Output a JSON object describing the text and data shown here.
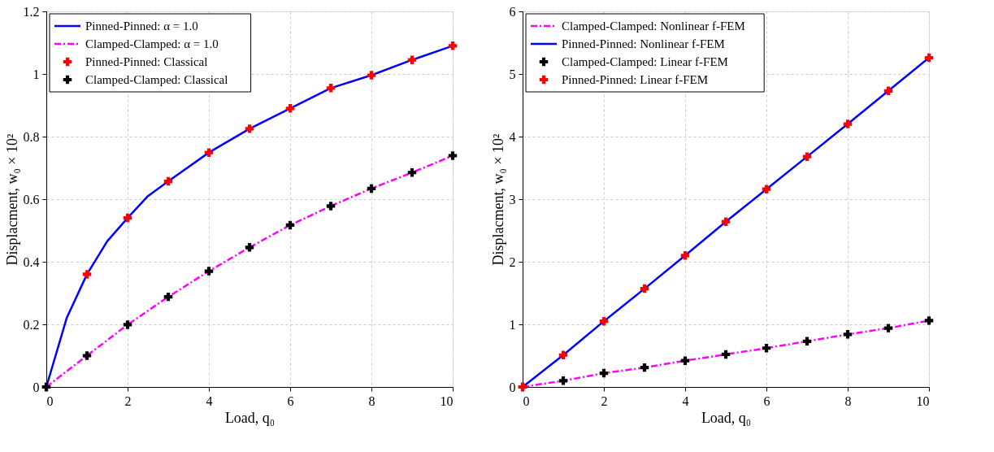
{
  "chart_data": [
    {
      "type": "line",
      "xlabel": "Load, q₀",
      "ylabel": "Displacment, w₀ × 10²",
      "xlim": [
        0,
        10
      ],
      "xticks": [
        0,
        2,
        4,
        6,
        8,
        10
      ],
      "ylim": [
        0,
        1.2
      ],
      "yticks": [
        0,
        0.2,
        0.4,
        0.6,
        0.8,
        1,
        1.2
      ],
      "grid": true,
      "legend": "top left",
      "series": [
        {
          "name": "Pinned-Pinned: α = 1.0",
          "line_style": "solid",
          "color": "#0000ff",
          "x": [
            0,
            0.5,
            1,
            1.5,
            2,
            2.5,
            3,
            4,
            5,
            6,
            7,
            8,
            9,
            10
          ],
          "values": [
            0,
            0.22,
            0.36,
            0.466,
            0.54,
            0.61,
            0.657,
            0.749,
            0.825,
            0.89,
            0.955,
            0.996,
            1.045,
            1.09
          ]
        },
        {
          "name": "Clamped-Clamped: α = 1.0",
          "line_style": "dashed",
          "color": "#ff00ff",
          "x": [
            0,
            1,
            2,
            3,
            4,
            5,
            6,
            7,
            8,
            9,
            10
          ],
          "values": [
            0,
            0.1,
            0.199,
            0.288,
            0.37,
            0.446,
            0.517,
            0.578,
            0.634,
            0.685,
            0.739
          ]
        },
        {
          "name": "Pinned-Pinned: Classical",
          "type": "scatter",
          "marker": "cross",
          "color": "#ff0000",
          "x": [
            0,
            1,
            2,
            3,
            4,
            5,
            6,
            7,
            8,
            9,
            10
          ],
          "values": [
            0,
            0.36,
            0.54,
            0.657,
            0.749,
            0.825,
            0.89,
            0.955,
            0.996,
            1.045,
            1.09
          ]
        },
        {
          "name": "Clamped-Clamped: Classical",
          "type": "scatter",
          "marker": "cross",
          "color": "#000000",
          "x": [
            0,
            1,
            2,
            3,
            4,
            5,
            6,
            7,
            8,
            9,
            10
          ],
          "values": [
            0,
            0.1,
            0.199,
            0.288,
            0.37,
            0.446,
            0.517,
            0.578,
            0.634,
            0.685,
            0.739
          ]
        }
      ]
    },
    {
      "type": "line",
      "xlabel": "Load, q₀",
      "ylabel": "Displacment, w₀ × 10²",
      "xlim": [
        0,
        10
      ],
      "xticks": [
        0,
        2,
        4,
        6,
        8,
        10
      ],
      "ylim": [
        0,
        6
      ],
      "yticks": [
        0,
        1,
        2,
        3,
        4,
        5,
        6
      ],
      "grid": true,
      "legend": "top left",
      "series": [
        {
          "name": "Clamped-Clamped: Nonlinear f-FEM",
          "line_style": "dashed",
          "color": "#ff00ff",
          "x": [
            0,
            1,
            2,
            3,
            4,
            5,
            6,
            7,
            8,
            9,
            10
          ],
          "values": [
            0,
            0.1,
            0.22,
            0.31,
            0.42,
            0.52,
            0.62,
            0.73,
            0.84,
            0.94,
            1.06
          ]
        },
        {
          "name": "Pinned-Pinned: Nonlinear f-FEM",
          "line_style": "solid",
          "color": "#0000ff",
          "x": [
            0,
            1,
            2,
            3,
            4,
            5,
            6,
            7,
            8,
            9,
            10
          ],
          "values": [
            0,
            0.51,
            1.05,
            1.57,
            2.1,
            2.64,
            3.16,
            3.68,
            4.2,
            4.73,
            5.26
          ]
        },
        {
          "name": "Clamped-Clamped: Linear f-FEM",
          "type": "scatter",
          "marker": "cross",
          "color": "#000000",
          "x": [
            0,
            1,
            2,
            3,
            4,
            5,
            6,
            7,
            8,
            9,
            10
          ],
          "values": [
            0,
            0.1,
            0.22,
            0.31,
            0.42,
            0.52,
            0.62,
            0.73,
            0.84,
            0.94,
            1.06
          ]
        },
        {
          "name": "Pinned-Pinned: Linear f-FEM",
          "type": "scatter",
          "marker": "cross",
          "color": "#ff0000",
          "x": [
            0,
            1,
            2,
            3,
            4,
            5,
            6,
            7,
            8,
            9,
            10
          ],
          "values": [
            0,
            0.51,
            1.05,
            1.57,
            2.1,
            2.64,
            3.16,
            3.68,
            4.2,
            4.73,
            5.26
          ]
        }
      ]
    }
  ]
}
